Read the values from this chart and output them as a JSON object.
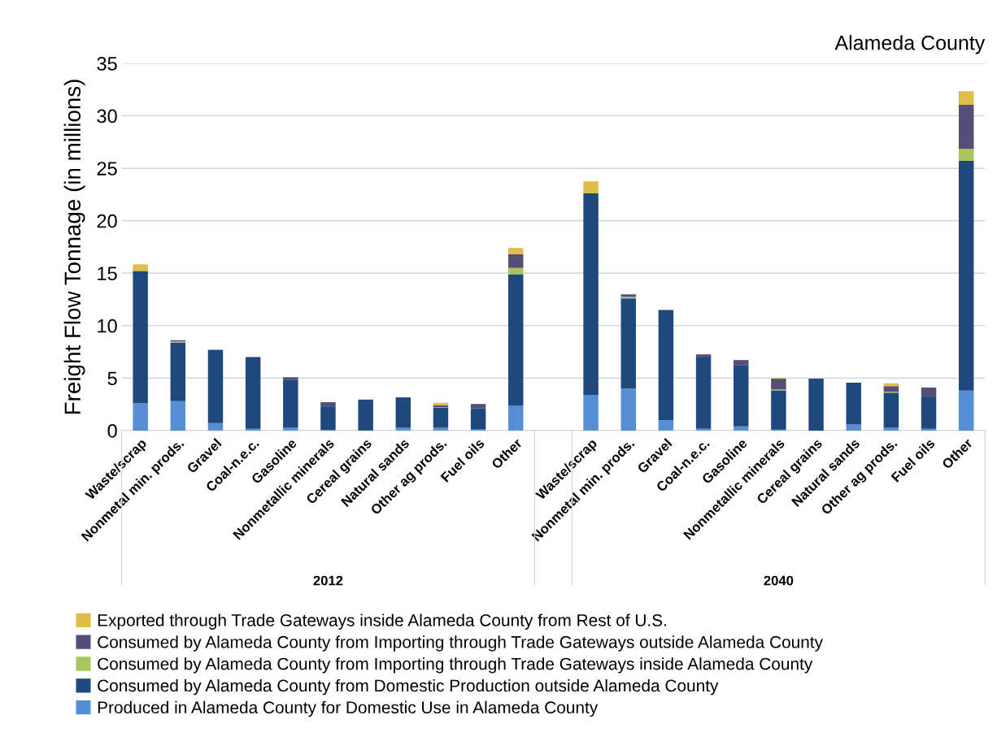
{
  "chart_data": {
    "type": "bar",
    "stacked": true,
    "title": "Alameda County",
    "ylabel": "Freight Flow Tonnage (in millions)",
    "categories": [
      "Waste/scrap",
      "Nonmetal min. prods.",
      "Gravel",
      "Coal-n.e.c.",
      "Gasoline",
      "Nonmetallic minerals",
      "Cereal grains",
      "Natural sands",
      "Other ag prods.",
      "Fuel oils",
      "Other",
      null,
      "Waste/scrap",
      "Nonmetal min. prods.",
      "Gravel",
      "Coal-n.e.c.",
      "Gasoline",
      "Nonmetallic minerals",
      "Cereal grains",
      "Natural sands",
      "Other ag prods.",
      "Fuel oils",
      "Other"
    ],
    "series": [
      {
        "name": "Produced in Alameda County for Domestic Use in Alameda County",
        "color": "#558ed5",
        "values": [
          2.6,
          2.8,
          0.7,
          0.17,
          0.3,
          0.05,
          0,
          0.26,
          0.26,
          0.1,
          2.4,
          null,
          3.4,
          4.0,
          1.0,
          0.16,
          0.4,
          0.08,
          0,
          0.57,
          0.27,
          0.16,
          3.8
        ]
      },
      {
        "name": "Consumed by Alameda County from Domestic Production outside Alameda County",
        "color": "#1f497d",
        "values": [
          12.6,
          5.6,
          7.0,
          6.8,
          4.55,
          2.25,
          2.95,
          2.9,
          1.9,
          2.03,
          12.5,
          null,
          19.2,
          8.6,
          10.5,
          6.8,
          5.8,
          3.75,
          4.95,
          4.0,
          3.35,
          3.0,
          21.9
        ]
      },
      {
        "name": "Consumed by Alameda County from Importing through Trade Gateways inside Alameda County",
        "color": "#a9c65a",
        "values": [
          0,
          0.1,
          0,
          0,
          0,
          0,
          0,
          0,
          0.05,
          0,
          0.6,
          null,
          0,
          0.14,
          0,
          0,
          0,
          0.08,
          0,
          0,
          0.08,
          0,
          1.15
        ]
      },
      {
        "name": "Consumed by Alameda County from Importing through Trade Gateways outside Alameda County",
        "color": "#544e79",
        "values": [
          0,
          0.1,
          0,
          0.05,
          0.23,
          0.4,
          0,
          0,
          0.2,
          0.4,
          1.3,
          null,
          0,
          0.24,
          0,
          0.3,
          0.52,
          1.03,
          0,
          0,
          0.54,
          0.94,
          4.2
        ]
      },
      {
        "name": "Exported through Trade Gateways inside Alameda County from Rest of U.S.",
        "color": "#e0bc4a",
        "values": [
          0.65,
          0,
          0,
          0,
          0,
          0,
          0,
          0,
          0.24,
          0,
          0.6,
          null,
          1.15,
          0,
          0,
          0,
          0,
          0.08,
          0,
          0,
          0.26,
          0,
          1.3
        ]
      }
    ],
    "ylim": [
      0,
      35
    ],
    "yticks": [
      0,
      5,
      10,
      15,
      20,
      25,
      30,
      35
    ],
    "grid": "y",
    "legend": "bottom",
    "annotations": [
      "2012",
      "2040"
    ]
  }
}
